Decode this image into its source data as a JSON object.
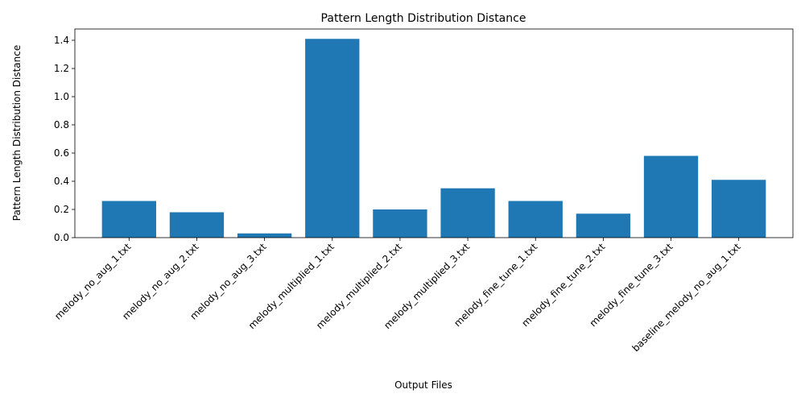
{
  "chart_data": {
    "type": "bar",
    "title": "Pattern Length Distribution Distance",
    "xlabel": "Output Files",
    "ylabel": "Pattern Length Distribution Distance",
    "categories": [
      "melody_no_aug_1.txt",
      "melody_no_aug_2.txt",
      "melody_no_aug_3.txt",
      "melody_multiplied_1.txt",
      "melody_multiplied_2.txt",
      "melody_multiplied_3.txt",
      "melody_fine_tune_1.txt",
      "melody_fine_tune_2.txt",
      "melody_fine_tune_3.txt",
      "baseline_melody_no_aug_1.txt"
    ],
    "values": [
      0.26,
      0.18,
      0.03,
      1.41,
      0.2,
      0.35,
      0.26,
      0.17,
      0.58,
      0.41
    ],
    "ylim": [
      0,
      1.48
    ],
    "yticks": [
      0.0,
      0.2,
      0.4,
      0.6,
      0.8,
      1.0,
      1.2,
      1.4
    ],
    "ytick_labels": [
      "0.0",
      "0.2",
      "0.4",
      "0.6",
      "0.8",
      "1.0",
      "1.2",
      "1.4"
    ],
    "grid": false,
    "bar_color": "#1f77b4"
  }
}
